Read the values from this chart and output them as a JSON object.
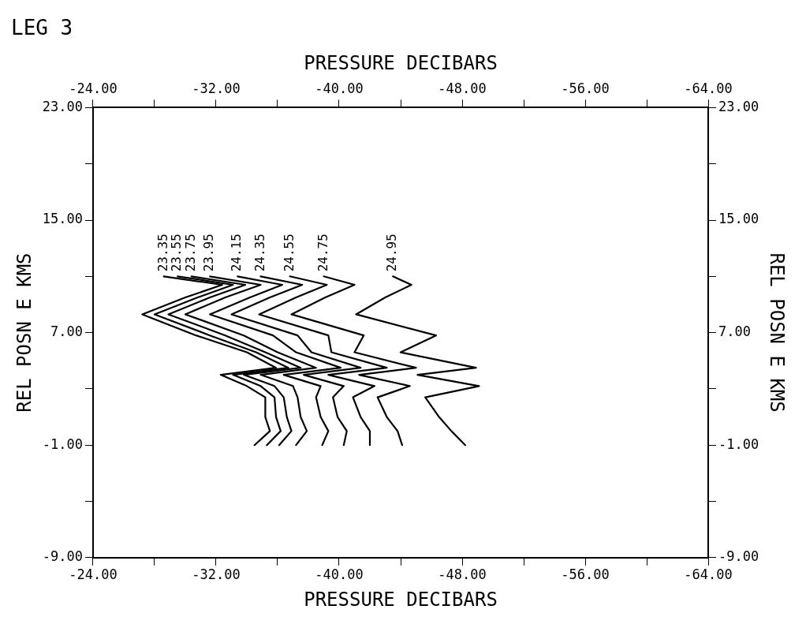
{
  "chart_data": {
    "type": "line",
    "title": "LEG 3",
    "xlabel": "PRESSURE DECIBARS",
    "x2label": "PRESSURE DECIBARS",
    "ylabel": "REL POSN E KMS",
    "y2label": "REL POSN E KMS",
    "xlim": [
      -24,
      -64
    ],
    "x2lim": [
      -24,
      -64
    ],
    "ylim": [
      -9,
      23
    ],
    "y2lim": [
      -9,
      23
    ],
    "xticks": [
      {
        "value": -24,
        "label": "-24.00"
      },
      {
        "value": -28,
        "label": null
      },
      {
        "value": -32,
        "label": "-32.00"
      },
      {
        "value": -36,
        "label": null
      },
      {
        "value": -40,
        "label": "-40.00"
      },
      {
        "value": -44,
        "label": null
      },
      {
        "value": -48,
        "label": "-48.00"
      },
      {
        "value": -52,
        "label": null
      },
      {
        "value": -56,
        "label": "-56.00"
      },
      {
        "value": -60,
        "label": null
      },
      {
        "value": -64,
        "label": "-64.00"
      }
    ],
    "x2ticks": [
      {
        "value": -24,
        "label": "-24.00"
      },
      {
        "value": -28,
        "label": null
      },
      {
        "value": -32,
        "label": "-32.00"
      },
      {
        "value": -36,
        "label": null
      },
      {
        "value": -40,
        "label": "-40.00"
      },
      {
        "value": -44,
        "label": null
      },
      {
        "value": -48,
        "label": "-48.00"
      },
      {
        "value": -52,
        "label": null
      },
      {
        "value": -56,
        "label": "-56.00"
      },
      {
        "value": -60,
        "label": null
      },
      {
        "value": -64,
        "label": "-64.00"
      }
    ],
    "yticks": [
      {
        "value": -9,
        "label": "-9.00"
      },
      {
        "value": -5,
        "label": null
      },
      {
        "value": -1,
        "label": "-1.00"
      },
      {
        "value": 3,
        "label": null
      },
      {
        "value": 7,
        "label": "7.00"
      },
      {
        "value": 11,
        "label": null
      },
      {
        "value": 15,
        "label": "15.00"
      },
      {
        "value": 19,
        "label": null
      },
      {
        "value": 23,
        "label": "23.00"
      }
    ],
    "y2ticks": [
      {
        "value": -9,
        "label": "-9.00"
      },
      {
        "value": -5,
        "label": null
      },
      {
        "value": -1,
        "label": "-1.00"
      },
      {
        "value": 3,
        "label": null
      },
      {
        "value": 7,
        "label": "7.00"
      },
      {
        "value": 11,
        "label": null
      },
      {
        "value": 15,
        "label": "15.00"
      },
      {
        "value": 19,
        "label": null
      },
      {
        "value": 23,
        "label": "23.00"
      }
    ],
    "grid": false,
    "legend": false,
    "marker": "none",
    "line_style": "solid",
    "series": [
      {
        "name": "23.35",
        "color": "#000000",
        "values": [
          11,
          10.4,
          9.5,
          8.3,
          6.8,
          5.6,
          4.5,
          4,
          3.2,
          2.4,
          1,
          0,
          -1
        ],
        "x": [
          -28.6,
          -32.4,
          -30,
          -27.2,
          -30.7,
          -34,
          -35.9,
          -32.3,
          -34,
          -35.2,
          -35.2,
          -35.5,
          -34.5
        ]
      },
      {
        "name": "23.55",
        "color": "#000000",
        "values": [
          11,
          10.4,
          9.5,
          8.3,
          6.8,
          5.6,
          4.5,
          4,
          3.2,
          2.4,
          1,
          0,
          -1
        ],
        "x": [
          -29.5,
          -33.1,
          -30.8,
          -28,
          -31.6,
          -34.6,
          -36.7,
          -33.1,
          -34.9,
          -35.8,
          -35.9,
          -36.2,
          -35.3
        ]
      },
      {
        "name": "23.75",
        "color": "#000000",
        "values": [
          11,
          10.4,
          9.5,
          8.3,
          6.8,
          5.6,
          4.5,
          4,
          3.2,
          2.4,
          1,
          0,
          -1
        ],
        "x": [
          -30.4,
          -33.9,
          -31.6,
          -28.9,
          -32.6,
          -35.2,
          -37.5,
          -33.8,
          -35.8,
          -36.4,
          -36.6,
          -36.9,
          -36.1
        ]
      },
      {
        "name": "23.95",
        "color": "#000000",
        "values": [
          11,
          10.4,
          9.5,
          8.3,
          6.8,
          5.6,
          4.5,
          4,
          3.2,
          2.4,
          1,
          0,
          -1
        ],
        "x": [
          -31.6,
          -34.9,
          -32.6,
          -30,
          -33.8,
          -36,
          -38.5,
          -34.9,
          -37,
          -37.3,
          -37.5,
          -37.9,
          -37.2
        ]
      },
      {
        "name": "24.15",
        "color": "#000000",
        "values": [
          11,
          10.4,
          9.5,
          8.3,
          6.8,
          5.6,
          4.5,
          4,
          3.2,
          2.4,
          1,
          0,
          -1
        ],
        "x": [
          -33.4,
          -36.3,
          -34.2,
          -31.6,
          -35.7,
          -37.2,
          -40.1,
          -36.4,
          -38.8,
          -38.5,
          -38.8,
          -39.3,
          -38.9
        ]
      },
      {
        "name": "24.35",
        "color": "#000000",
        "values": [
          11,
          10.4,
          9.5,
          8.3,
          6.8,
          5.6,
          4.5,
          4,
          3.2,
          2.4,
          1,
          0,
          -1
        ],
        "x": [
          -34.9,
          -37.6,
          -35.5,
          -33,
          -37.3,
          -38.2,
          -41.4,
          -37.7,
          -40.3,
          -39.6,
          -39.9,
          -40.5,
          -40.3
        ]
      },
      {
        "name": "24.75",
        "color": "#000000",
        "values": [
          11,
          10.4,
          9.5,
          8.3,
          6.8,
          5.6,
          4.5,
          4,
          3.2,
          2.4,
          1,
          0,
          -1
        ],
        "x": [
          -39,
          -41,
          -39.1,
          -36.9,
          -41.6,
          -41,
          -45,
          -41.3,
          -44.6,
          -42.5,
          -43.1,
          -43.8,
          -44.1
        ]
      },
      {
        "name": "24.55",
        "color": "#000000",
        "values": [
          11,
          10.4,
          9.5,
          8.3,
          6.8,
          5.6,
          4.5,
          4,
          3.2,
          2.4,
          1,
          0,
          -1
        ],
        "x": [
          -36.8,
          -39.2,
          -37.2,
          -34.8,
          -39.3,
          -39.5,
          -43.1,
          -39.3,
          -42.3,
          -40.9,
          -41.4,
          -42,
          -42
        ]
      },
      {
        "name": "24.95",
        "color": "#000000",
        "values": [
          11,
          10.4,
          9.5,
          8.3,
          6.8,
          5.6,
          4.5,
          4,
          3.2,
          2.4,
          1,
          0,
          -1
        ],
        "x": [
          -43.5,
          -44.7,
          -43,
          -41.1,
          -46.3,
          -44,
          -48.9,
          -45.1,
          -49.1,
          -45.6,
          -46.5,
          -47.3,
          -48.2
        ]
      }
    ]
  }
}
